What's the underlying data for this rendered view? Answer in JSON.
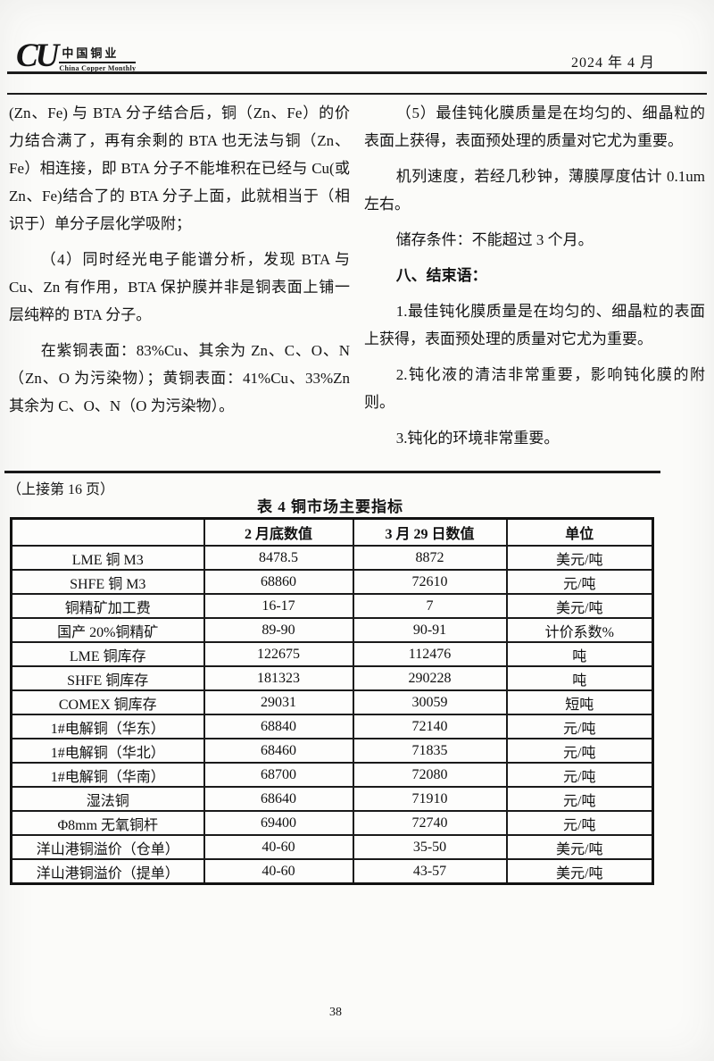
{
  "header": {
    "logo": {
      "monogram": "CU",
      "chinese_name": "中国铜业",
      "english_name": "China Copper Monthly"
    },
    "issue_date": "2024 年 4 月"
  },
  "article": {
    "left_column": {
      "paragraphs": [
        {
          "text": "(Zn、Fe) 与 BTA 分子结合后，铜（Zn、Fe）的价力结合满了，再有余剩的 BTA 也无法与铜（Zn、Fe）相连接，即 BTA 分子不能堆积在已经与 Cu(或 Zn、Fe)结合了的 BTA 分子上面，此就相当于（相识于）单分子层化学吸附；",
          "indent": false
        },
        {
          "text": "（4）同时经光电子能谱分析，发现 BTA 与 Cu、Zn 有作用，BTA 保护膜并非是铜表面上铺一层纯粹的 BTA 分子。",
          "indent": true
        },
        {
          "text": "在紫铜表面：83%Cu、其余为 Zn、C、O、N（Zn、O 为污染物）；黄铜表面：41%Cu、33%Zn 其余为 C、O、N（O 为污染物）。",
          "indent": true
        }
      ]
    },
    "right_column": {
      "paragraphs": [
        {
          "text": "（5）最佳钝化膜质量是在均匀的、细晶粒的表面上获得，表面预处理的质量对它尤为重要。",
          "indent": true
        },
        {
          "text": "机列速度，若经几秒钟，薄膜厚度估计 0.1um 左右。",
          "indent": true
        },
        {
          "text": "储存条件：不能超过 3 个月。",
          "indent": true
        },
        {
          "text": "八、结束语：",
          "indent": true,
          "heading": true
        },
        {
          "text": "1.最佳钝化膜质量是在均匀的、细晶粒的表面上获得，表面预处理的质量对它尤为重要。",
          "indent": true
        },
        {
          "text": "2.钝化液的清洁非常重要，影响钝化膜的附则。",
          "indent": true
        },
        {
          "text": "3.钝化的环境非常重要。",
          "indent": true
        }
      ]
    }
  },
  "continuation_note": "（上接第 16 页）",
  "table": {
    "title": "表 4 铜市场主要指标",
    "headers": [
      "",
      "2 月底数值",
      "3 月 29 日数值",
      "单位"
    ],
    "rows": [
      [
        "LME 铜 M3",
        "8478.5",
        "8872",
        "美元/吨"
      ],
      [
        "SHFE 铜 M3",
        "68860",
        "72610",
        "元/吨"
      ],
      [
        "铜精矿加工费",
        "16-17",
        "7",
        "美元/吨"
      ],
      [
        "国产 20%铜精矿",
        "89-90",
        "90-91",
        "计价系数%"
      ],
      [
        "LME 铜库存",
        "122675",
        "112476",
        "吨"
      ],
      [
        "SHFE 铜库存",
        "181323",
        "290228",
        "吨"
      ],
      [
        "COMEX 铜库存",
        "29031",
        "30059",
        "短吨"
      ],
      [
        "1#电解铜（华东）",
        "68840",
        "72140",
        "元/吨"
      ],
      [
        "1#电解铜（华北）",
        "68460",
        "71835",
        "元/吨"
      ],
      [
        "1#电解铜（华南）",
        "68700",
        "72080",
        "元/吨"
      ],
      [
        "湿法铜",
        "68640",
        "71910",
        "元/吨"
      ],
      [
        "Φ8mm 无氧铜杆",
        "69400",
        "72740",
        "元/吨"
      ],
      [
        "洋山港铜溢价（仓单）",
        "40-60",
        "35-50",
        "美元/吨"
      ],
      [
        "洋山港铜溢价（提单）",
        "40-60",
        "43-57",
        "美元/吨"
      ]
    ]
  },
  "footer": {
    "page_number": "38"
  }
}
